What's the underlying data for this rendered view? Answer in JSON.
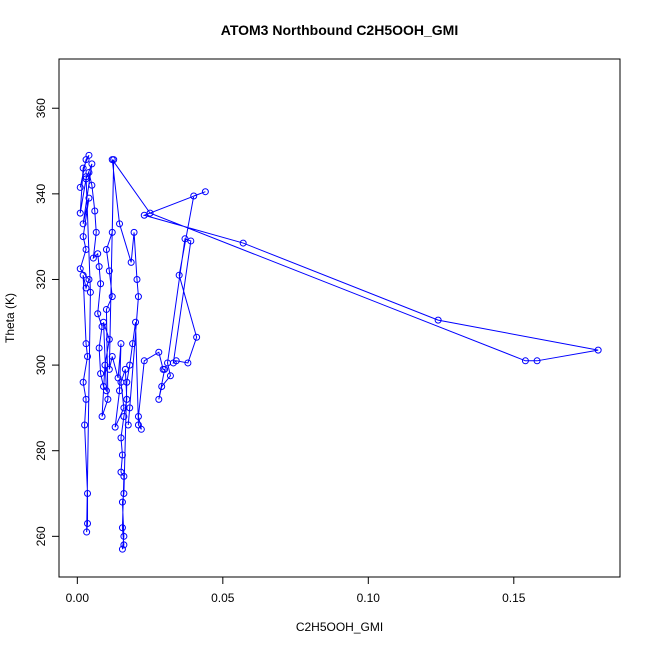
{
  "chart_data": {
    "type": "line",
    "title": "ATOM3 Northbound C2H5OOH_GMI",
    "xlabel": "C2H5OOH_GMI",
    "ylabel": "Theta (K)",
    "xlim": [
      -0.0063,
      0.1865
    ],
    "ylim": [
      250.5,
      371.5
    ],
    "x_ticks": [
      0.0,
      0.05,
      0.1,
      0.15
    ],
    "x_tick_labels": [
      "0.00",
      "0.05",
      "0.10",
      "0.15"
    ],
    "y_ticks": [
      260,
      280,
      300,
      320,
      340,
      360
    ],
    "y_tick_labels": [
      "260",
      "280",
      "300",
      "320",
      "340",
      "360"
    ],
    "grid": false,
    "series": [
      {
        "color": "#0000ff",
        "marker": "open-circle",
        "x": [
          0.001,
          0.003,
          0.004,
          0.002,
          0.001,
          0.003,
          0.005,
          0.002,
          0.004,
          0.002,
          0.003,
          0.001,
          0.004,
          0.003,
          0.002,
          0.003,
          0.0035,
          0.002,
          0.003,
          0.0025,
          0.0035,
          0.0035,
          0.0032,
          0.0045,
          0.003,
          0.004,
          0.005,
          0.006,
          0.0065,
          0.0055,
          0.007,
          0.0075,
          0.008,
          0.007,
          0.0085,
          0.0075,
          0.008,
          0.009,
          0.01,
          0.009,
          0.011,
          0.0095,
          0.0085,
          0.0105,
          0.01,
          0.012,
          0.011,
          0.01,
          0.012,
          0.0125,
          0.011,
          0.012,
          0.014,
          0.015,
          0.0145,
          0.013,
          0.016,
          0.015,
          0.0165,
          0.017,
          0.016,
          0.015,
          0.0155,
          0.015,
          0.016,
          0.0155,
          0.016,
          0.0155,
          0.016,
          0.0155,
          0.016,
          0.017,
          0.018,
          0.019,
          0.02,
          0.021,
          0.022,
          0.021,
          0.023,
          0.028,
          0.0295,
          0.03,
          0.028,
          0.029,
          0.032,
          0.031,
          0.037,
          0.039,
          0.033,
          0.034,
          0.038,
          0.041,
          0.035,
          0.04,
          0.044,
          0.023,
          0.057,
          0.124,
          0.179,
          0.158,
          0.154,
          0.025,
          0.012,
          0.0145,
          0.0185,
          0.0195,
          0.0205,
          0.021,
          0.018,
          0.0175
        ],
        "y": [
          341.5,
          348,
          349,
          346,
          335.5,
          343.5,
          347,
          333,
          339,
          330,
          327,
          322.5,
          320,
          318,
          321,
          305,
          302,
          296,
          292,
          286,
          270,
          263,
          261,
          317,
          344,
          345,
          342,
          336,
          331,
          325,
          326,
          323,
          319,
          312,
          309,
          304,
          298,
          295,
          294,
          310,
          306,
          300,
          288,
          292,
          313,
          316,
          322,
          327,
          331,
          348,
          299,
          302,
          297,
          305,
          294,
          285.5,
          290,
          296,
          299,
          292,
          288,
          283,
          279,
          275,
          274,
          262,
          258,
          257,
          260,
          268,
          270,
          296,
          300,
          305,
          310,
          286,
          285,
          288,
          301,
          303,
          299,
          299,
          292,
          295,
          297.5,
          300.5,
          329.5,
          329,
          300.5,
          301,
          300.5,
          306.5,
          321,
          339.5,
          340.5,
          335,
          328.5,
          310.5,
          303.5,
          301,
          301,
          335.5,
          348,
          333,
          324,
          331,
          320,
          316,
          290,
          286
        ]
      }
    ]
  }
}
